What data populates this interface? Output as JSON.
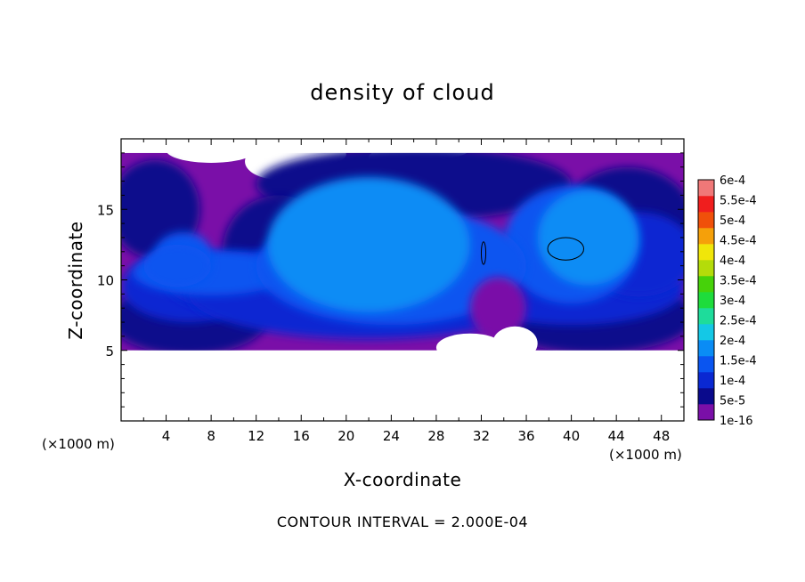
{
  "chart_data": {
    "type": "heatmap",
    "title": "density of cloud",
    "xlabel": "X-coordinate",
    "ylabel": "Z-coordinate",
    "x_unit": "(×1000 m)",
    "y_unit": "(×1000 m)",
    "xlim": [
      0,
      50
    ],
    "ylim": [
      0,
      20
    ],
    "x_ticks": [
      4,
      8,
      12,
      16,
      20,
      24,
      28,
      32,
      36,
      40,
      44,
      48
    ],
    "x_tick_labels": [
      "4",
      "8",
      "12",
      "16",
      "20",
      "24",
      "28",
      "32",
      "36",
      "40",
      "44",
      "48"
    ],
    "y_ticks": [
      5,
      10,
      15
    ],
    "y_tick_labels": [
      "5",
      "10",
      "15"
    ],
    "colorbar": {
      "levels": [
        1e-16,
        5e-05,
        0.0001,
        0.00015,
        0.0002,
        0.00025,
        0.0003,
        0.00035,
        0.0004,
        0.00045,
        0.0005,
        0.00055,
        0.0006
      ],
      "labels": [
        "1e-16",
        "5e-5",
        "1e-4",
        "1.5e-4",
        "2e-4",
        "2.5e-4",
        "3e-4",
        "3.5e-4",
        "4e-4",
        "4.5e-4",
        "5e-4",
        "5.5e-4",
        "6e-4"
      ],
      "colors": [
        "#7a0fa8",
        "#0a0a8c",
        "#0a28d2",
        "#0a55f0",
        "#0a8cf5",
        "#14c8e6",
        "#1edc9b",
        "#1edc3c",
        "#46d20a",
        "#b4dc0a",
        "#f0e60a",
        "#f5a00a",
        "#f0500a",
        "#f01e1e",
        "#f07878"
      ]
    },
    "cloud_layer_z_range": [
      5,
      19
    ],
    "contour_interval_text": "CONTOUR INTERVAL = 2.000E-04",
    "cloud_features": [
      {
        "name": "large core",
        "x": 22,
        "z": 12.5,
        "level": 4
      },
      {
        "name": "right core",
        "x": 41.5,
        "z": 13,
        "level": 4
      },
      {
        "name": "left plume",
        "x": 5,
        "z": 11,
        "level": 3
      },
      {
        "name": "thin contour left",
        "x": 32.2,
        "z": 11.9,
        "level": 5
      },
      {
        "name": "thin contour right",
        "x": 39.5,
        "z": 12.2,
        "level": 5
      }
    ]
  }
}
